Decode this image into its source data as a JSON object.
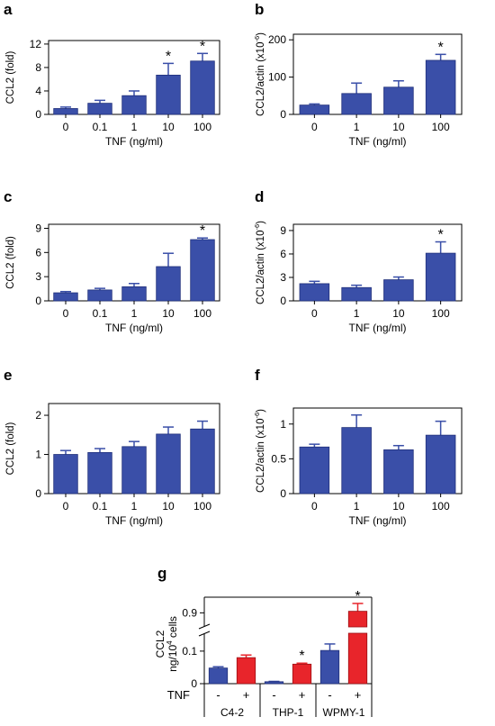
{
  "colors": {
    "blue": "#3a4fa8",
    "red": "#e8252b",
    "axis": "#000000"
  },
  "chart_data": [
    {
      "panel": "a",
      "type": "bar",
      "categories": [
        "0",
        "0.1",
        "1",
        "10",
        "100"
      ],
      "values": [
        1.0,
        1.9,
        3.2,
        6.7,
        9.1
      ],
      "errors": [
        0.25,
        0.5,
        0.8,
        2.0,
        1.3
      ],
      "significant": [
        false,
        false,
        false,
        true,
        true
      ],
      "ylabel": "CCL2 (fold)",
      "ylabel_sup": "",
      "ylabel_suffix": "",
      "xlabel": "TNF (ng/ml)",
      "yticks": [
        "0",
        "4",
        "8",
        "12"
      ],
      "ylim": [
        0,
        12.6
      ]
    },
    {
      "panel": "b",
      "type": "bar",
      "categories": [
        "0",
        "1",
        "10",
        "100"
      ],
      "values": [
        25,
        56,
        73,
        145
      ],
      "errors": [
        3,
        28,
        17,
        16
      ],
      "significant": [
        false,
        false,
        false,
        true
      ],
      "ylabel": "CCL2/actin (x10",
      "ylabel_sup": "-6",
      "ylabel_suffix": ")",
      "xlabel": "TNF (ng/ml)",
      "yticks": [
        "0",
        "100",
        "200"
      ],
      "ylim": [
        0,
        215
      ]
    },
    {
      "panel": "c",
      "type": "bar",
      "categories": [
        "0",
        "0.1",
        "1",
        "10",
        "100"
      ],
      "values": [
        1.0,
        1.35,
        1.75,
        4.25,
        7.6
      ],
      "errors": [
        0.15,
        0.2,
        0.4,
        1.65,
        0.2
      ],
      "significant": [
        false,
        false,
        false,
        false,
        true
      ],
      "ylabel": "CCL2 (fold)",
      "ylabel_sup": "",
      "ylabel_suffix": "",
      "xlabel": "TNF (ng/ml)",
      "yticks": [
        "0",
        "3",
        "6",
        "9"
      ],
      "ylim": [
        0,
        9.5
      ]
    },
    {
      "panel": "d",
      "type": "bar",
      "categories": [
        "0",
        "1",
        "10",
        "100"
      ],
      "values": [
        2.2,
        1.7,
        2.7,
        6.1
      ],
      "errors": [
        0.3,
        0.3,
        0.35,
        1.45
      ],
      "significant": [
        false,
        false,
        false,
        true
      ],
      "ylabel": "CCL2/actin (x10",
      "ylabel_sup": "-6",
      "ylabel_suffix": ")",
      "xlabel": "TNF (ng/ml)",
      "yticks": [
        "0",
        "3",
        "6",
        "9"
      ],
      "ylim": [
        0,
        9.8
      ]
    },
    {
      "panel": "e",
      "type": "bar",
      "categories": [
        "0",
        "0.1",
        "1",
        "10",
        "100"
      ],
      "values": [
        1.0,
        1.05,
        1.2,
        1.52,
        1.65
      ],
      "errors": [
        0.1,
        0.1,
        0.13,
        0.18,
        0.2
      ],
      "significant": [
        false,
        false,
        false,
        false,
        false
      ],
      "ylabel": "CCL2 (fold)",
      "ylabel_sup": "",
      "ylabel_suffix": "",
      "xlabel": "TNF (ng/ml)",
      "yticks": [
        "0",
        "1",
        "2"
      ],
      "ylim": [
        0,
        2.3
      ]
    },
    {
      "panel": "f",
      "type": "bar",
      "categories": [
        "0",
        "1",
        "10",
        "100"
      ],
      "values": [
        0.67,
        0.95,
        0.63,
        0.84
      ],
      "errors": [
        0.04,
        0.18,
        0.06,
        0.2
      ],
      "significant": [
        false,
        false,
        false,
        false
      ],
      "ylabel": "CCL2/actin (x10",
      "ylabel_sup": "-6",
      "ylabel_suffix": ")",
      "xlabel": "TNF (ng/ml)",
      "yticks": [
        "0",
        "0.5",
        "1"
      ],
      "ylim": [
        0,
        1.23
      ]
    },
    {
      "panel": "g",
      "type": "bar",
      "groups": [
        "C4-2",
        "THP-1",
        "WPMY-1"
      ],
      "tnf_labels": [
        "-",
        "+"
      ],
      "row_label": "TNF",
      "values": [
        0.048,
        0.08,
        0.006,
        0.06,
        0.102,
        0.905
      ],
      "errors": [
        0.004,
        0.008,
        0.001,
        0.003,
        0.02,
        0.025
      ],
      "bar_colors": [
        "blue",
        "red",
        "blue",
        "red",
        "blue",
        "red"
      ],
      "significant": [
        false,
        false,
        false,
        true,
        false,
        true
      ],
      "ylabel_line1": "CCL2",
      "ylabel_line2": "ng/10",
      "ylabel_line2_sup": "4",
      "ylabel_line2_suffix": " cells",
      "yticks_lower": [
        "0",
        "0.1"
      ],
      "yticks_upper": [
        "0.9"
      ],
      "ylim_lower": [
        0,
        0.155
      ],
      "ylim_upper": [
        0.855,
        0.95
      ]
    }
  ]
}
